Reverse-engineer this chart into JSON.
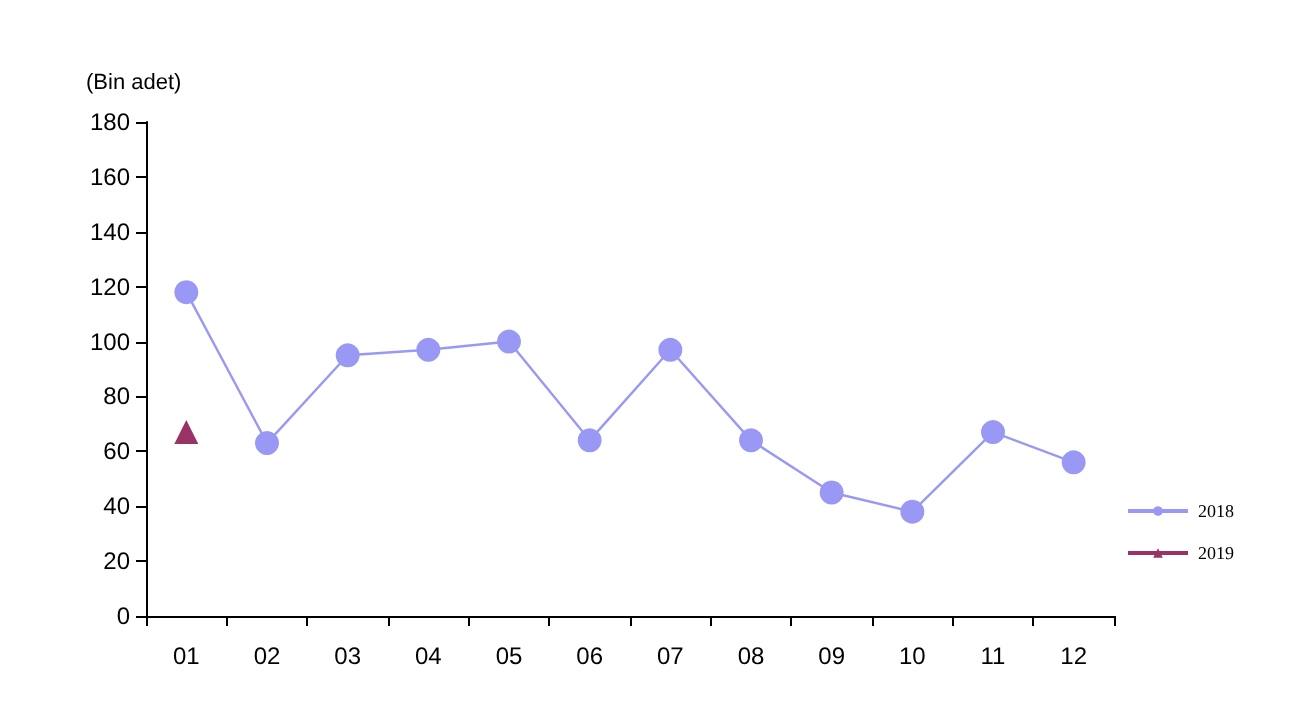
{
  "chart_data": {
    "type": "line",
    "ylabel": "(Bin adet)",
    "categories": [
      "01",
      "02",
      "03",
      "04",
      "05",
      "06",
      "07",
      "08",
      "09",
      "10",
      "11",
      "12"
    ],
    "series": [
      {
        "name": "2018",
        "color": "#9999f5",
        "marker": "circle",
        "values": [
          118,
          63,
          95,
          97,
          100,
          64,
          97,
          64,
          45,
          38,
          67,
          56
        ]
      },
      {
        "name": "2019",
        "color": "#993366",
        "marker": "triangle",
        "values": [
          67,
          null,
          null,
          null,
          null,
          null,
          null,
          null,
          null,
          null,
          null,
          null
        ]
      }
    ],
    "ylim": [
      0,
      180
    ],
    "yticks": [
      0,
      20,
      40,
      60,
      80,
      100,
      120,
      140,
      160,
      180
    ],
    "grid": false,
    "legend": "right"
  }
}
